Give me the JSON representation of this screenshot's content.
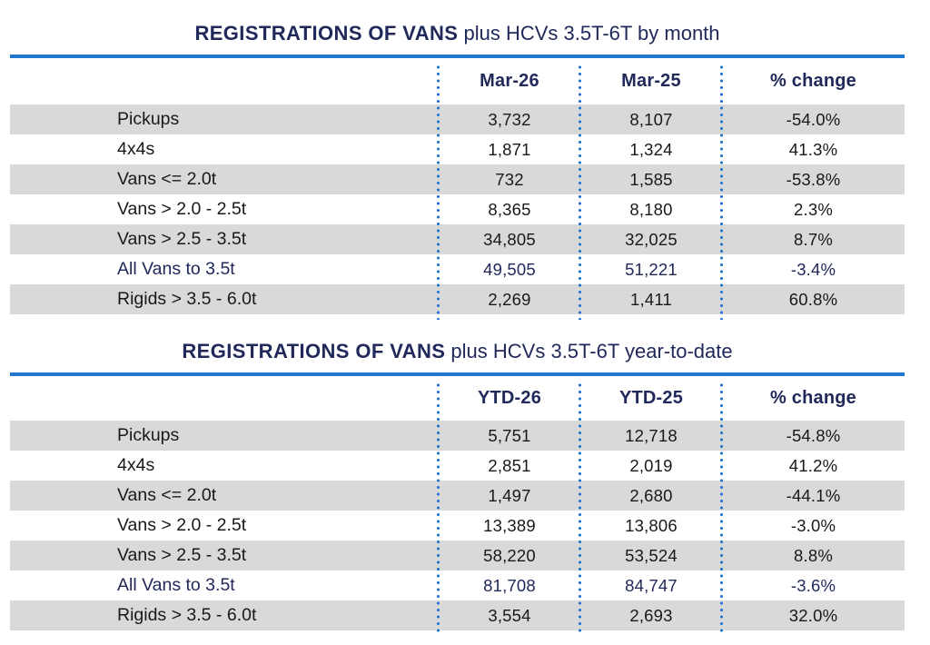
{
  "colors": {
    "navy": "#20295a",
    "rule_blue": "#2177cf",
    "row_gray": "#d9d9d9",
    "text_black": "#191919"
  },
  "tables": [
    {
      "title_bold": "REGISTRATIONS OF VANS",
      "title_rest": " plus HCVs 3.5T-6T by month",
      "columns": [
        "Mar-26",
        "Mar-25",
        "% change"
      ],
      "rows": [
        {
          "label": "Pickups",
          "v1": "3,732",
          "v2": "8,107",
          "pct": "-54.0%"
        },
        {
          "label": "4x4s",
          "v1": "1,871",
          "v2": "1,324",
          "pct": "41.3%"
        },
        {
          "label": "Vans <= 2.0t",
          "v1": "732",
          "v2": "1,585",
          "pct": "-53.8%"
        },
        {
          "label": "Vans > 2.0 - 2.5t",
          "v1": "8,365",
          "v2": "8,180",
          "pct": "2.3%"
        },
        {
          "label": "Vans > 2.5 - 3.5t",
          "v1": "34,805",
          "v2": "32,025",
          "pct": "8.7%"
        },
        {
          "label": "All Vans to 3.5t",
          "v1": "49,505",
          "v2": "51,221",
          "pct": "-3.4%"
        },
        {
          "label": "Rigids > 3.5 - 6.0t",
          "v1": "2,269",
          "v2": "1,411",
          "pct": "60.8%"
        }
      ]
    },
    {
      "title_bold": "REGISTRATIONS OF VANS",
      "title_rest": " plus HCVs 3.5T-6T year-to-date",
      "columns": [
        "YTD-26",
        "YTD-25",
        "% change"
      ],
      "rows": [
        {
          "label": "Pickups",
          "v1": "5,751",
          "v2": "12,718",
          "pct": "-54.8%"
        },
        {
          "label": "4x4s",
          "v1": "2,851",
          "v2": "2,019",
          "pct": "41.2%"
        },
        {
          "label": "Vans <= 2.0t",
          "v1": "1,497",
          "v2": "2,680",
          "pct": "-44.1%"
        },
        {
          "label": "Vans > 2.0 - 2.5t",
          "v1": "13,389",
          "v2": "13,806",
          "pct": "-3.0%"
        },
        {
          "label": "Vans > 2.5 - 3.5t",
          "v1": "58,220",
          "v2": "53,524",
          "pct": "8.8%"
        },
        {
          "label": "All Vans to 3.5t",
          "v1": "81,708",
          "v2": "84,747",
          "pct": "-3.6%"
        },
        {
          "label": "Rigids > 3.5 - 6.0t",
          "v1": "3,554",
          "v2": "2,693",
          "pct": "32.0%"
        }
      ]
    }
  ]
}
